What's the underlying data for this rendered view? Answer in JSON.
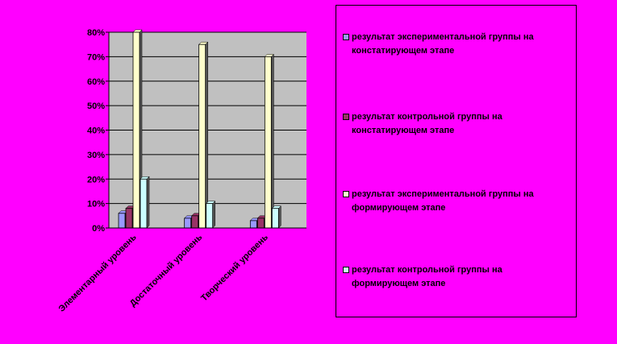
{
  "colors": {
    "background": "#ff00ff",
    "plot_area": "#c0c0c0"
  },
  "chart_data": {
    "type": "bar",
    "title": "",
    "xlabel": "",
    "ylabel": "",
    "ylim": [
      0,
      80
    ],
    "y_ticks": [
      "0%",
      "10%",
      "20%",
      "30%",
      "40%",
      "50%",
      "60%",
      "70%",
      "80%"
    ],
    "categories": [
      "Элементарный уровень",
      "Достаточный уровень",
      "Творческий уровень"
    ],
    "grid": true,
    "legend_position": "right",
    "series": [
      {
        "name": "результат экспериментальной группы на констатирующем этапе",
        "color": "#9999ff",
        "values": [
          6,
          4,
          3
        ]
      },
      {
        "name": "результат контрольной группы на констатирующем этапе",
        "color": "#993366",
        "values": [
          8,
          5,
          4
        ]
      },
      {
        "name": "результат экспериментальной группы на формирующем этапе",
        "color": "#ffffcc",
        "values": [
          80,
          75,
          70
        ]
      },
      {
        "name": "результат контрольной группы на формирующем этапе",
        "color": "#ccffff",
        "values": [
          20,
          10,
          8
        ]
      }
    ]
  }
}
